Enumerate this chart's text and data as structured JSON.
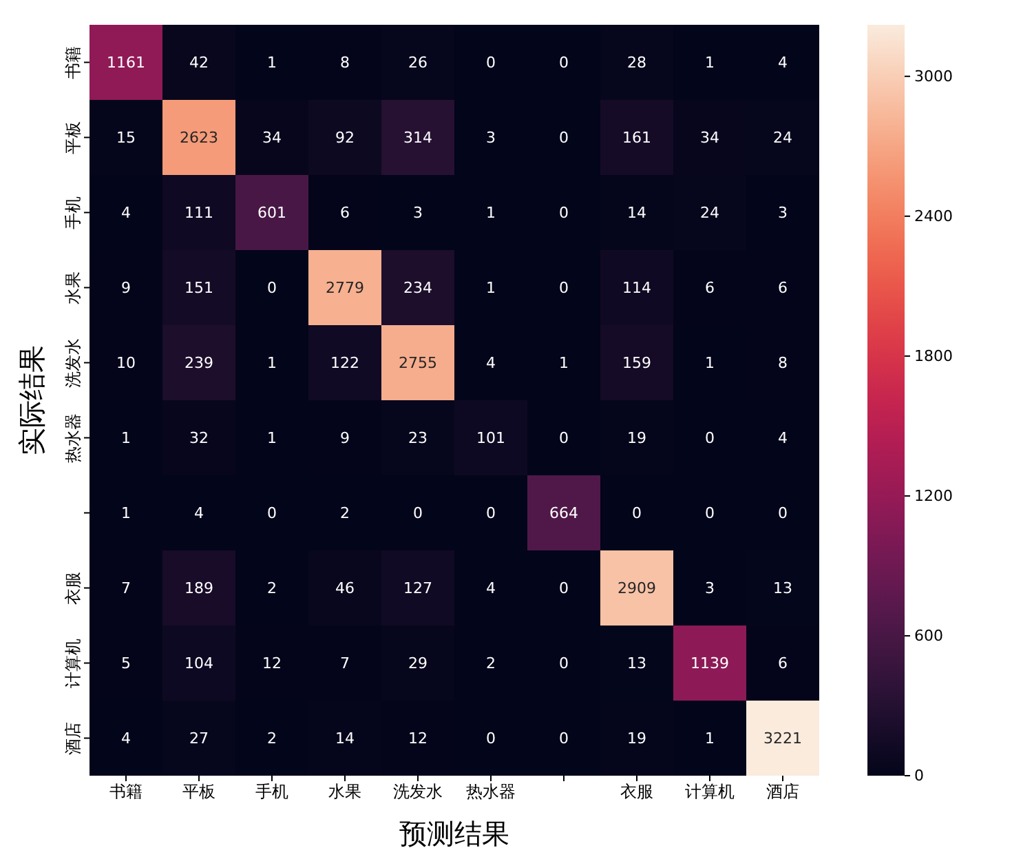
{
  "chart_data": {
    "type": "heatmap",
    "xlabel": "预测结果",
    "ylabel": "实际结果",
    "categories": [
      "书籍",
      "平板",
      "手机",
      "水果",
      "洗发水",
      "热水器",
      null,
      "衣服",
      "计算机",
      "酒店"
    ],
    "y_categories": [
      "书籍",
      "平板",
      "手机",
      "水果",
      "洗发水",
      "热水器",
      null,
      "衣服",
      "计算机",
      "酒店"
    ],
    "cells": [
      [
        1161,
        42,
        1,
        8,
        26,
        0,
        0,
        28,
        1,
        4
      ],
      [
        15,
        2623,
        34,
        92,
        314,
        3,
        0,
        161,
        34,
        24
      ],
      [
        4,
        111,
        601,
        6,
        3,
        1,
        0,
        14,
        24,
        3
      ],
      [
        9,
        151,
        0,
        2779,
        234,
        1,
        0,
        114,
        6,
        6
      ],
      [
        10,
        239,
        1,
        122,
        2755,
        4,
        1,
        159,
        1,
        8
      ],
      [
        1,
        32,
        1,
        9,
        23,
        101,
        0,
        19,
        0,
        4
      ],
      [
        1,
        4,
        0,
        2,
        0,
        0,
        664,
        0,
        0,
        0
      ],
      [
        7,
        189,
        2,
        46,
        127,
        4,
        0,
        2909,
        3,
        13
      ],
      [
        5,
        104,
        12,
        7,
        29,
        2,
        0,
        13,
        1139,
        6
      ],
      [
        4,
        27,
        2,
        14,
        12,
        0,
        0,
        19,
        1,
        3221
      ]
    ],
    "data_labels": true,
    "clim": [
      0,
      3221
    ],
    "cticks": [
      0,
      600,
      1200,
      1800,
      2400,
      3000
    ]
  }
}
